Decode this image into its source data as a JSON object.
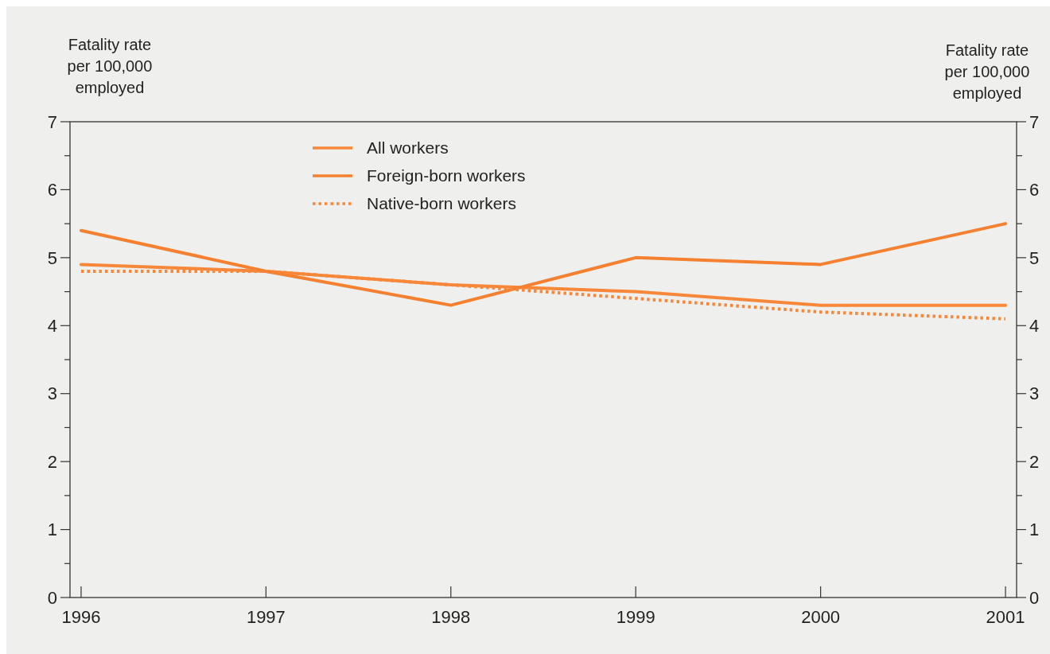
{
  "chart_data": {
    "type": "line",
    "ylabel": "Fatality rate per 100,000 employed",
    "y2label": "Fatality rate per 100,000 employed",
    "x": [
      1996,
      1997,
      1998,
      1999,
      2000,
      2001
    ],
    "xlim": [
      1995.94,
      2001.06
    ],
    "xticks": [
      1996,
      1997,
      1998,
      1999,
      2000,
      2001
    ],
    "ylim": [
      0,
      7
    ],
    "yticks": [
      0,
      {
        "value": 0.5,
        "label": null
      },
      1,
      {
        "value": 1.5,
        "label": null
      },
      2,
      {
        "value": 2.5,
        "label": null
      },
      3,
      {
        "value": 3.5,
        "label": null
      },
      4,
      {
        "value": 4.5,
        "label": null
      },
      5,
      {
        "value": 5.5,
        "label": null
      },
      6,
      {
        "value": 6.5,
        "label": null
      },
      7
    ],
    "y2lim": [
      0,
      7
    ],
    "y2ticks": [
      0,
      {
        "value": 0.5,
        "label": null
      },
      1,
      {
        "value": 1.5,
        "label": null
      },
      2,
      {
        "value": 2.5,
        "label": null
      },
      3,
      {
        "value": 3.5,
        "label": null
      },
      4,
      {
        "value": 4.5,
        "label": null
      },
      5,
      {
        "value": 5.5,
        "label": null
      },
      6,
      {
        "value": 6.5,
        "label": null
      },
      7
    ],
    "legend": "top",
    "grid": false,
    "series": [
      {
        "name": "All workers",
        "color": "#f7883a",
        "values": [
          4.9,
          4.8,
          4.6,
          4.5,
          4.3,
          4.3
        ],
        "line_style": "solid"
      },
      {
        "name": "Foreign-born workers",
        "color": "#f58030",
        "values": [
          5.4,
          4.8,
          4.3,
          5.0,
          4.9,
          5.5
        ],
        "line_style": "solid"
      },
      {
        "name": "Native-born workers",
        "color": "#f7883a",
        "values": [
          4.8,
          4.8,
          4.6,
          4.4,
          4.2,
          4.1
        ],
        "line_style": "dotted"
      }
    ]
  }
}
